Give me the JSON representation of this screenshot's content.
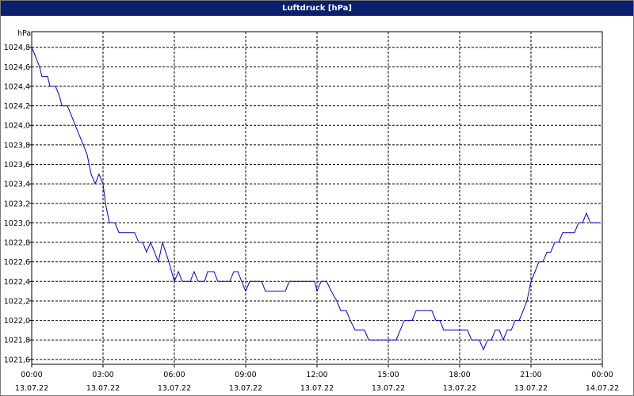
{
  "chart_data": {
    "type": "line",
    "title": "Luftdruck [hPa]",
    "y_label": "hPa",
    "x": [
      0,
      0.17,
      0.33,
      0.43,
      0.67,
      0.77,
      1,
      1.17,
      1.27,
      1.5,
      1.67,
      1.83,
      2,
      2.17,
      2.33,
      2.5,
      2.67,
      2.83,
      3,
      3.1,
      3.27,
      3.5,
      3.67,
      4.33,
      4.5,
      4.67,
      4.83,
      5,
      5.33,
      5.5,
      5.77,
      6,
      6.17,
      6.33,
      6.67,
      6.83,
      7,
      7.27,
      7.4,
      7.67,
      7.83,
      8.33,
      8.5,
      8.67,
      8.83,
      9,
      9.17,
      9.67,
      9.83,
      10.67,
      10.83,
      11.9,
      12,
      12.17,
      12.4,
      12.6,
      12.83,
      13,
      13.23,
      13.4,
      13.6,
      14,
      14.17,
      15.33,
      15.5,
      15.67,
      16,
      16.17,
      16.83,
      17,
      17.17,
      17.33,
      18.33,
      18.5,
      18.83,
      19,
      19.17,
      19.33,
      19.5,
      19.67,
      19.83,
      20,
      20.17,
      20.33,
      20.5,
      20.67,
      20.83,
      21,
      21.17,
      21.33,
      21.5,
      21.67,
      21.83,
      22,
      22.17,
      22.33,
      22.83,
      23,
      23.17,
      23.33,
      23.5,
      23.9
    ],
    "series": [
      {
        "name": "Luftdruck",
        "color": "#0000c8",
        "values": [
          1024.8,
          1024.7,
          1024.6,
          1024.5,
          1024.5,
          1024.4,
          1024.4,
          1024.3,
          1024.2,
          1024.2,
          1024.1,
          1024.0,
          1023.9,
          1023.8,
          1023.7,
          1023.5,
          1023.4,
          1023.5,
          1023.4,
          1023.2,
          1023.0,
          1023.0,
          1022.9,
          1022.9,
          1022.8,
          1022.8,
          1022.7,
          1022.8,
          1022.6,
          1022.8,
          1022.6,
          1022.4,
          1022.5,
          1022.4,
          1022.4,
          1022.5,
          1022.4,
          1022.4,
          1022.5,
          1022.5,
          1022.4,
          1022.4,
          1022.5,
          1022.5,
          1022.4,
          1022.3,
          1022.4,
          1022.4,
          1022.3,
          1022.3,
          1022.4,
          1022.4,
          1022.3,
          1022.4,
          1022.4,
          1022.3,
          1022.2,
          1022.1,
          1022.1,
          1022.0,
          1021.9,
          1021.9,
          1021.8,
          1021.8,
          1021.9,
          1022.0,
          1022.0,
          1022.1,
          1022.1,
          1022.0,
          1022.0,
          1021.9,
          1021.9,
          1021.8,
          1021.8,
          1021.7,
          1021.8,
          1021.8,
          1021.9,
          1021.9,
          1021.8,
          1021.9,
          1021.9,
          1022.0,
          1022.0,
          1022.1,
          1022.2,
          1022.4,
          1022.5,
          1022.6,
          1022.6,
          1022.7,
          1022.7,
          1022.8,
          1022.8,
          1022.9,
          1022.9,
          1023.0,
          1023.0,
          1023.1,
          1023.0,
          1023.0
        ]
      }
    ],
    "xlim": [
      0,
      24
    ],
    "xticks": [
      {
        "value": 0,
        "label": "00:00"
      },
      {
        "value": 3,
        "label": "03:00"
      },
      {
        "value": 6,
        "label": "06:00"
      },
      {
        "value": 9,
        "label": "09:00"
      },
      {
        "value": 12,
        "label": "12:00"
      },
      {
        "value": 15,
        "label": "15:00"
      },
      {
        "value": 18,
        "label": "18:00"
      },
      {
        "value": 21,
        "label": "21:00"
      },
      {
        "value": 24,
        "label": "00:00"
      }
    ],
    "xtick_dates": [
      "13.07.22",
      "13.07.22",
      "13.07.22",
      "13.07.22",
      "13.07.22",
      "13.07.22",
      "13.07.22",
      "13.07.22",
      "14.07.22"
    ],
    "ylim": [
      1021.55,
      1024.96
    ],
    "yticks": [
      {
        "value": 1021.6,
        "label": "1021,6"
      },
      {
        "value": 1021.8,
        "label": "1021,8"
      },
      {
        "value": 1022.0,
        "label": "1022,0"
      },
      {
        "value": 1022.2,
        "label": "1022,2"
      },
      {
        "value": 1022.4,
        "label": "1022,4"
      },
      {
        "value": 1022.6,
        "label": "1022,6"
      },
      {
        "value": 1022.8,
        "label": "1022,8"
      },
      {
        "value": 1023.0,
        "label": "1023,0"
      },
      {
        "value": 1023.2,
        "label": "1023,2"
      },
      {
        "value": 1023.4,
        "label": "1023,4"
      },
      {
        "value": 1023.6,
        "label": "1023,6"
      },
      {
        "value": 1023.8,
        "label": "1023,8"
      },
      {
        "value": 1024.0,
        "label": "1024,0"
      },
      {
        "value": 1024.2,
        "label": "1024,2"
      },
      {
        "value": 1024.4,
        "label": "1024,4"
      },
      {
        "value": 1024.6,
        "label": "1024,6"
      },
      {
        "value": 1024.8,
        "label": "1024,8"
      }
    ],
    "grid": true
  }
}
